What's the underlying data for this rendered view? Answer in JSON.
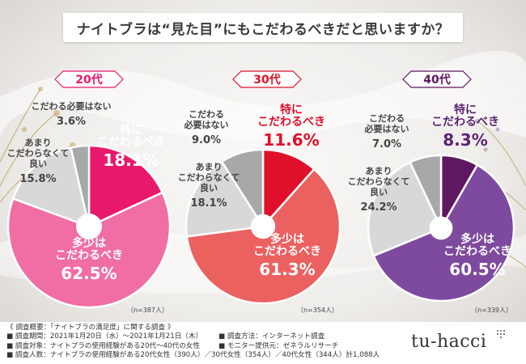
{
  "title": "ナイトブラは“見た目”にもこだわるべきだと思いますか？",
  "colors": {
    "label_pink": "#e8186d",
    "label_red": "#e0102a",
    "label_purple": "#5e2372",
    "gray_text": "#444444"
  },
  "chart_data": [
    {
      "type": "pie",
      "title": "20代",
      "n_label": "（n=387人）",
      "categories": [
        "特にこだわるべき",
        "多少はこだわるべき",
        "あまりこだわらなくて良い",
        "こだわる必要はない"
      ],
      "values": [
        18.1,
        62.5,
        15.8,
        3.6
      ],
      "colors": [
        "#e8186d",
        "#f06ea4",
        "#d8d8d8",
        "#a8a8a8"
      ],
      "label_lines": [
        [
          "特に",
          "こだわるべき"
        ],
        [
          "多少は",
          "こだわるべき"
        ],
        [
          "あまり",
          "こだわらなくて",
          "良い"
        ],
        [
          "こだわる必要はない"
        ]
      ],
      "value_labels": [
        "18.1%",
        "62.5%",
        "15.8%",
        "3.6%"
      ]
    },
    {
      "type": "pie",
      "title": "30代",
      "n_label": "（n=354人）",
      "categories": [
        "特にこだわるべき",
        "多少はこだわるべき",
        "あまりこだわらなくて良い",
        "こだわる必要はない"
      ],
      "values": [
        11.6,
        61.3,
        18.1,
        9.0
      ],
      "colors": [
        "#e0102a",
        "#eb6160",
        "#d8d8d8",
        "#a8a8a8"
      ],
      "label_lines": [
        [
          "特に",
          "こだわるべき"
        ],
        [
          "多少は",
          "こだわるべき"
        ],
        [
          "あまり",
          "こだわらなくて",
          "良い"
        ],
        [
          "こだわる",
          "必要はない"
        ]
      ],
      "value_labels": [
        "11.6%",
        "61.3%",
        "18.1%",
        "9.0%"
      ]
    },
    {
      "type": "pie",
      "title": "40代",
      "n_label": "（n=339人）",
      "categories": [
        "特にこだわるべき",
        "多少はこだわるべき",
        "あまりこだわらなくて良い",
        "こだわる必要はない"
      ],
      "values": [
        8.3,
        60.5,
        24.2,
        7.0
      ],
      "colors": [
        "#5e1760",
        "#7e4a9e",
        "#d8d8d8",
        "#a8a8a8"
      ],
      "label_lines": [
        [
          "特に",
          "こだわるべき"
        ],
        [
          "多少は",
          "こだわるべき"
        ],
        [
          "あまり",
          "こだわらなくて",
          "良い"
        ],
        [
          "こだわる",
          "必要はない"
        ]
      ],
      "value_labels": [
        "8.3%",
        "60.5%",
        "24.2%",
        "7.0%"
      ]
    }
  ],
  "footer": {
    "notes": [
      "《 調査概要：「ナイトブラの満足度」に関する調査 》",
      "■ 調査期間：2021年1月20日（水）～2021年1月21日（木）",
      "■ 調査対象：ナイトブラの使用経験がある20代～40代の女性",
      "■ 調査人数：ナイトブラの使用経験がある20代女性（390人）／30代女性（354人）／40代女性（344人）計1,088人"
    ],
    "notes_col2": [
      "■ 調査方法：インターネット調査",
      "■ モニター提供元：ゼネラルリサーチ"
    ],
    "logo": "tu-hacci"
  }
}
